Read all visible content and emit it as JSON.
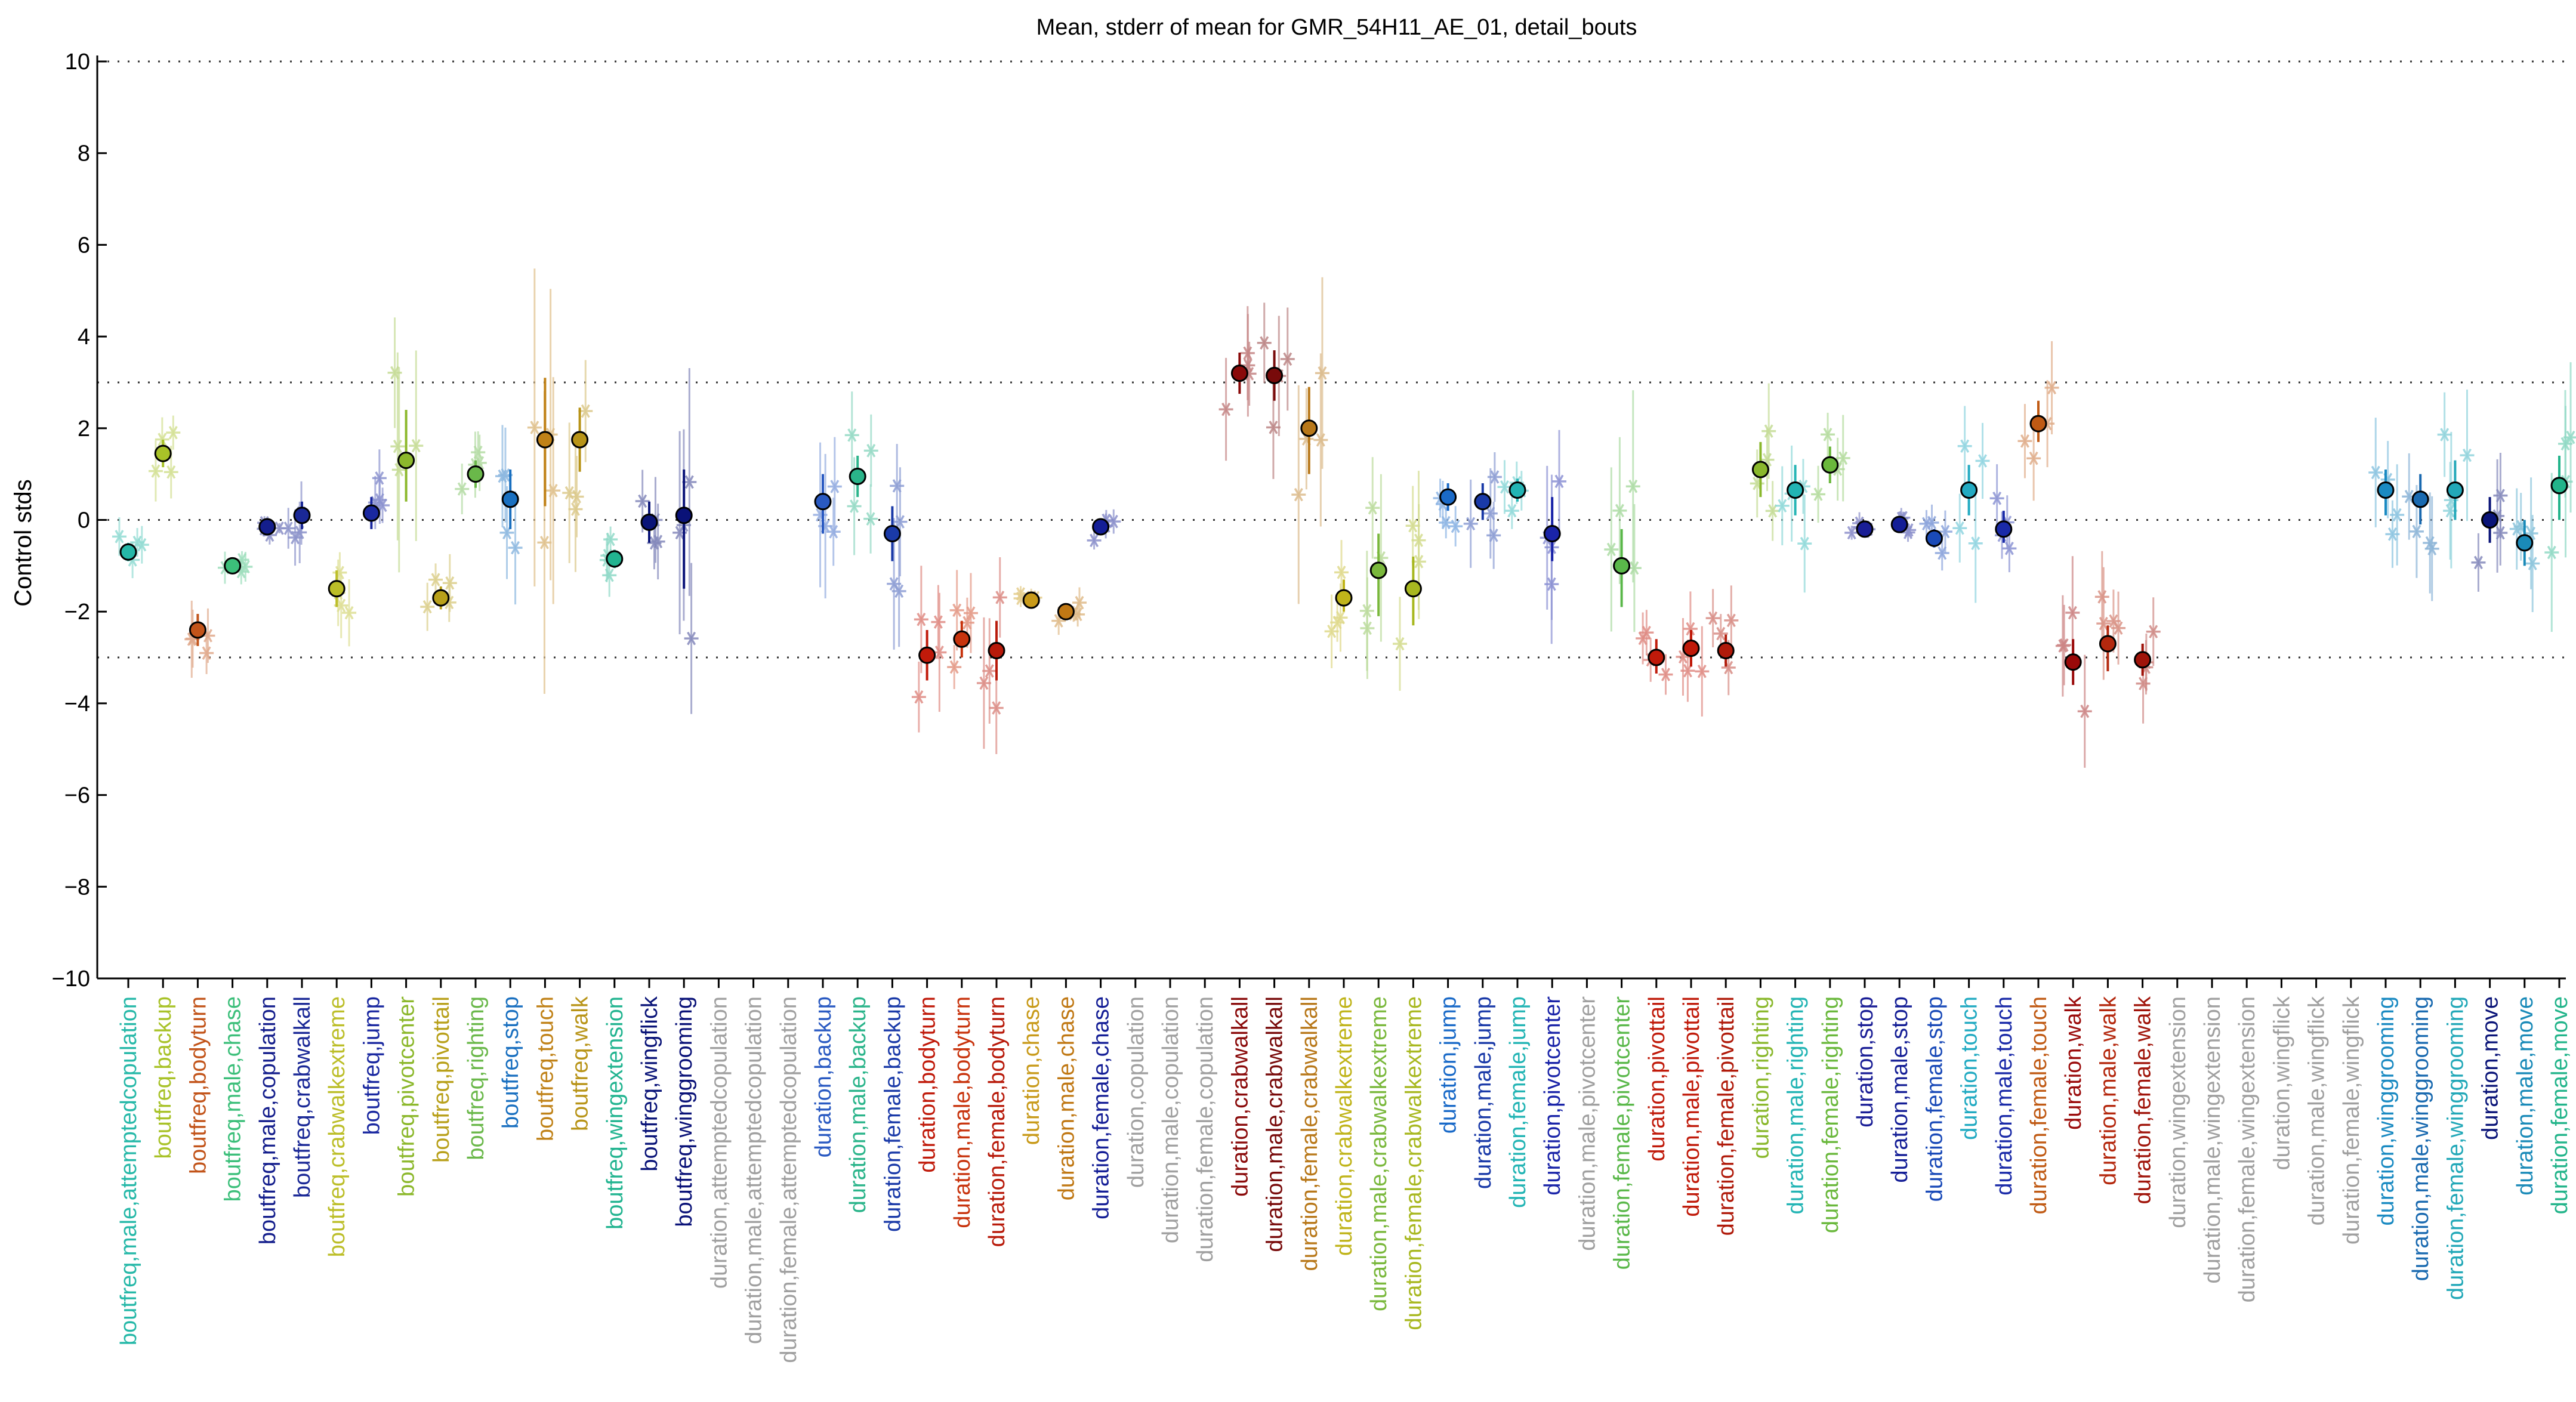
{
  "chart_data": {
    "type": "scatter",
    "title": "Mean, stderr of mean for GMR_54H11_AE_01, detail_bouts",
    "ylabel": "Control stds",
    "xlabel": "",
    "ylim": [
      -10,
      10
    ],
    "yticks": [
      -10,
      -8,
      -6,
      -4,
      -2,
      0,
      2,
      4,
      6,
      8,
      10
    ],
    "reference_lines": [
      10,
      3,
      0,
      -3,
      -10
    ],
    "grid": false,
    "categories": [
      {
        "label": "boutfreq,male,attemptedcopulation",
        "color": "#26b8a8",
        "mean": -0.7,
        "lo": -0.9,
        "hi": -0.5,
        "inactive": false
      },
      {
        "label": "boutfreq,backup",
        "color": "#a8c228",
        "mean": 1.45,
        "lo": 1.15,
        "hi": 1.75,
        "inactive": false
      },
      {
        "label": "boutfreq,bodyturn",
        "color": "#c2541a",
        "mean": -2.4,
        "lo": -2.75,
        "hi": -2.05,
        "inactive": false
      },
      {
        "label": "boutfreq,male,chase",
        "color": "#3cbf7a",
        "mean": -1.0,
        "lo": -1.15,
        "hi": -0.85,
        "inactive": false
      },
      {
        "label": "boutfreq,male,copulation",
        "color": "#141e8c",
        "mean": -0.15,
        "lo": -0.25,
        "hi": -0.05,
        "inactive": false
      },
      {
        "label": "boutfreq,crabwalkall",
        "color": "#1a2896",
        "mean": 0.1,
        "lo": -0.2,
        "hi": 0.4,
        "inactive": false
      },
      {
        "label": "boutfreq,crabwalkextreme",
        "color": "#bcbe28",
        "mean": -1.5,
        "lo": -1.9,
        "hi": -1.1,
        "inactive": false
      },
      {
        "label": "boutfreq,jump",
        "color": "#1a28a0",
        "mean": 0.15,
        "lo": -0.2,
        "hi": 0.5,
        "inactive": false
      },
      {
        "label": "boutfreq,pivotcenter",
        "color": "#8cb82c",
        "mean": 1.3,
        "lo": 0.4,
        "hi": 2.4,
        "inactive": false
      },
      {
        "label": "boutfreq,pivottail",
        "color": "#b8a01a",
        "mean": -1.7,
        "lo": -1.95,
        "hi": -1.45,
        "inactive": false
      },
      {
        "label": "boutfreq,righting",
        "color": "#6ab84a",
        "mean": 1.0,
        "lo": 0.7,
        "hi": 1.3,
        "inactive": false
      },
      {
        "label": "boutfreq,stop",
        "color": "#1a70c0",
        "mean": 0.45,
        "lo": -0.2,
        "hi": 1.1,
        "inactive": false
      },
      {
        "label": "boutfreq,touch",
        "color": "#c08218",
        "mean": 1.75,
        "lo": 0.3,
        "hi": 3.1,
        "inactive": false
      },
      {
        "label": "boutfreq,walk",
        "color": "#b89418",
        "mean": 1.75,
        "lo": 1.05,
        "hi": 2.45,
        "inactive": false
      },
      {
        "label": "boutfreq,wingextension",
        "color": "#22b490",
        "mean": -0.85,
        "lo": -1.05,
        "hi": -0.65,
        "inactive": false
      },
      {
        "label": "boutfreq,wingflick",
        "color": "#0a1478",
        "mean": -0.05,
        "lo": -0.5,
        "hi": 0.4,
        "inactive": false
      },
      {
        "label": "boutfreq,winggrooming",
        "color": "#0a1278",
        "mean": 0.1,
        "lo": -1.5,
        "hi": 1.1,
        "inactive": false
      },
      {
        "label": "duration,attemptedcopulation",
        "color": "#a0a0a0",
        "inactive": true
      },
      {
        "label": "duration,male,attemptedcopulation",
        "color": "#a0a0a0",
        "inactive": true
      },
      {
        "label": "duration,female,attemptedcopulation",
        "color": "#a0a0a0",
        "inactive": true
      },
      {
        "label": "duration,backup",
        "color": "#2a5ac2",
        "mean": 0.4,
        "lo": -0.3,
        "hi": 1.0,
        "inactive": false
      },
      {
        "label": "duration,male,backup",
        "color": "#2ab48a",
        "mean": 0.95,
        "lo": 0.5,
        "hi": 1.4,
        "inactive": false
      },
      {
        "label": "duration,female,backup",
        "color": "#1a3aa8",
        "mean": -0.3,
        "lo": -0.9,
        "hi": 0.3,
        "inactive": false
      },
      {
        "label": "duration,bodyturn",
        "color": "#c01a0a",
        "mean": -2.95,
        "lo": -3.5,
        "hi": -2.4,
        "inactive": false
      },
      {
        "label": "duration,male,bodyturn",
        "color": "#c8340e",
        "mean": -2.6,
        "lo": -3.0,
        "hi": -2.2,
        "inactive": false
      },
      {
        "label": "duration,female,bodyturn",
        "color": "#b81a0a",
        "mean": -2.85,
        "lo": -3.5,
        "hi": -2.2,
        "inactive": false
      },
      {
        "label": "duration,chase",
        "color": "#c89a1a",
        "mean": -1.75,
        "lo": -1.85,
        "hi": -1.65,
        "inactive": false
      },
      {
        "label": "duration,male,chase",
        "color": "#c07814",
        "mean": -2.0,
        "lo": -2.15,
        "hi": -1.85,
        "inactive": false
      },
      {
        "label": "duration,female,chase",
        "color": "#141e96",
        "mean": -0.15,
        "lo": -0.3,
        "hi": 0.0,
        "inactive": false
      },
      {
        "label": "duration,copulation",
        "color": "#a0a0a0",
        "inactive": true
      },
      {
        "label": "duration,male,copulation",
        "color": "#a0a0a0",
        "inactive": true
      },
      {
        "label": "duration,female,copulation",
        "color": "#a0a0a0",
        "inactive": true
      },
      {
        "label": "duration,crabwalkall",
        "color": "#8a0a0a",
        "mean": 3.2,
        "lo": 2.75,
        "hi": 3.65,
        "inactive": false
      },
      {
        "label": "duration,male,crabwalkall",
        "color": "#780a0a",
        "mean": 3.15,
        "lo": 2.6,
        "hi": 3.7,
        "inactive": false
      },
      {
        "label": "duration,female,crabwalkall",
        "color": "#b8781a",
        "mean": 2.0,
        "lo": 1.0,
        "hi": 2.9,
        "inactive": false
      },
      {
        "label": "duration,crabwalkextreme",
        "color": "#c0b41a",
        "mean": -1.7,
        "lo": -2.0,
        "hi": -1.3,
        "inactive": false
      },
      {
        "label": "duration,male,crabwalkextreme",
        "color": "#7ab83c",
        "mean": -1.1,
        "lo": -2.1,
        "hi": -0.3,
        "inactive": false
      },
      {
        "label": "duration,female,crabwalkextreme",
        "color": "#a8b820",
        "mean": -1.5,
        "lo": -2.3,
        "hi": -0.8,
        "inactive": false
      },
      {
        "label": "duration,jump",
        "color": "#1a6ac8",
        "mean": 0.5,
        "lo": 0.2,
        "hi": 0.8,
        "inactive": false
      },
      {
        "label": "duration,male,jump",
        "color": "#1a3aa8",
        "mean": 0.4,
        "lo": 0.0,
        "hi": 0.8,
        "inactive": false
      },
      {
        "label": "duration,female,jump",
        "color": "#22b4b4",
        "mean": 0.65,
        "lo": 0.4,
        "hi": 0.9,
        "inactive": false
      },
      {
        "label": "duration,pivotcenter",
        "color": "#1a24a8",
        "mean": -0.3,
        "lo": -0.9,
        "hi": 0.5,
        "inactive": false
      },
      {
        "label": "duration,male,pivotcenter",
        "color": "#a0a0a0",
        "inactive": true
      },
      {
        "label": "duration,female,pivotcenter",
        "color": "#5ab84a",
        "mean": -1.0,
        "lo": -1.9,
        "hi": -0.2,
        "inactive": false
      },
      {
        "label": "duration,pivottail",
        "color": "#c01a0a",
        "mean": -3.0,
        "lo": -3.35,
        "hi": -2.6,
        "inactive": false
      },
      {
        "label": "duration,male,pivottail",
        "color": "#c01a0a",
        "mean": -2.8,
        "lo": -3.2,
        "hi": -2.4,
        "inactive": false
      },
      {
        "label": "duration,female,pivottail",
        "color": "#b01a0a",
        "mean": -2.85,
        "lo": -3.2,
        "hi": -2.5,
        "inactive": false
      },
      {
        "label": "duration,righting",
        "color": "#8ab82c",
        "mean": 1.1,
        "lo": 0.5,
        "hi": 1.7,
        "inactive": false
      },
      {
        "label": "duration,male,righting",
        "color": "#22b4b4",
        "mean": 0.65,
        "lo": 0.1,
        "hi": 1.2,
        "inactive": false
      },
      {
        "label": "duration,female,righting",
        "color": "#6ab83c",
        "mean": 1.2,
        "lo": 0.8,
        "hi": 1.6,
        "inactive": false
      },
      {
        "label": "duration,stop",
        "color": "#1a1e96",
        "mean": -0.2,
        "lo": -0.3,
        "hi": -0.1,
        "inactive": false
      },
      {
        "label": "duration,male,stop",
        "color": "#141e96",
        "mean": -0.1,
        "lo": -0.2,
        "hi": 0.0,
        "inactive": false
      },
      {
        "label": "duration,female,stop",
        "color": "#1a4ab8",
        "mean": -0.4,
        "lo": -0.6,
        "hi": -0.2,
        "inactive": false
      },
      {
        "label": "duration,touch",
        "color": "#22aac2",
        "mean": 0.65,
        "lo": 0.1,
        "hi": 1.2,
        "inactive": false
      },
      {
        "label": "duration,male,touch",
        "color": "#1a2aa8",
        "mean": -0.2,
        "lo": -0.5,
        "hi": 0.2,
        "inactive": false
      },
      {
        "label": "duration,female,touch",
        "color": "#c05a14",
        "mean": 2.1,
        "lo": 1.7,
        "hi": 2.6,
        "inactive": false
      },
      {
        "label": "duration,walk",
        "color": "#9a0a0a",
        "mean": -3.1,
        "lo": -3.6,
        "hi": -2.6,
        "inactive": false
      },
      {
        "label": "duration,male,walk",
        "color": "#b4280e",
        "mean": -2.7,
        "lo": -3.3,
        "hi": -2.3,
        "inactive": false
      },
      {
        "label": "duration,female,walk",
        "color": "#a0140a",
        "mean": -3.05,
        "lo": -3.4,
        "hi": -2.7,
        "inactive": false
      },
      {
        "label": "duration,wingextension",
        "color": "#a0a0a0",
        "inactive": true
      },
      {
        "label": "duration,male,wingextension",
        "color": "#a0a0a0",
        "inactive": true
      },
      {
        "label": "duration,female,wingextension",
        "color": "#a0a0a0",
        "inactive": true
      },
      {
        "label": "duration,wingflick",
        "color": "#a0a0a0",
        "inactive": true
      },
      {
        "label": "duration,male,wingflick",
        "color": "#a0a0a0",
        "inactive": true
      },
      {
        "label": "duration,female,wingflick",
        "color": "#a0a0a0",
        "inactive": true
      },
      {
        "label": "duration,winggrooming",
        "color": "#1a8ac2",
        "mean": 0.65,
        "lo": 0.1,
        "hi": 1.1,
        "inactive": false
      },
      {
        "label": "duration,male,winggrooming",
        "color": "#1a6ab0",
        "mean": 0.45,
        "lo": -0.1,
        "hi": 1.0,
        "inactive": false
      },
      {
        "label": "duration,female,winggrooming",
        "color": "#22a8b8",
        "mean": 0.65,
        "lo": 0.0,
        "hi": 1.3,
        "inactive": false
      },
      {
        "label": "duration,move",
        "color": "#0a1478",
        "mean": 0.0,
        "lo": -0.5,
        "hi": 0.5,
        "inactive": false
      },
      {
        "label": "duration,male,move",
        "color": "#1a8ab8",
        "mean": -0.5,
        "lo": -1.0,
        "hi": 0.0,
        "inactive": false
      },
      {
        "label": "duration,female,move",
        "color": "#22b48a",
        "mean": 0.75,
        "lo": 0.0,
        "hi": 1.4,
        "inactive": false
      }
    ]
  }
}
